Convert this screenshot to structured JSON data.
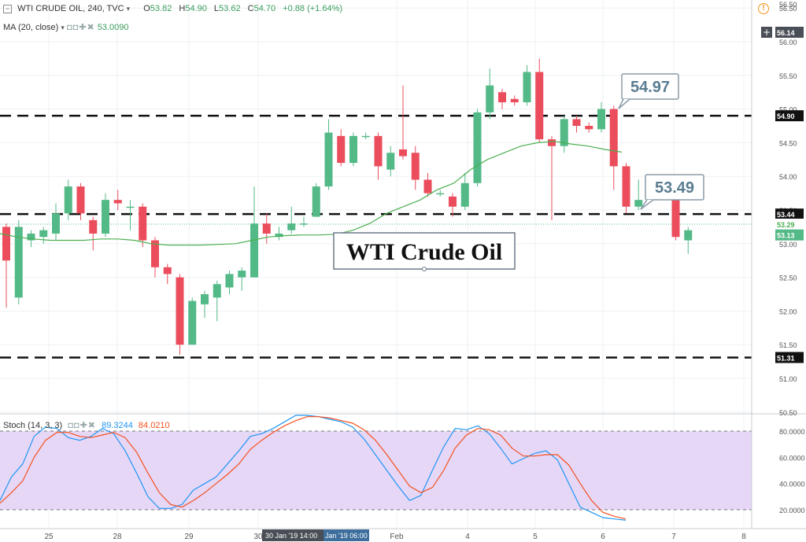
{
  "header": {
    "symbol": "WTI CRUDE OIL, 240, TVC",
    "open_label": "O",
    "open": "53.82",
    "high_label": "H",
    "high": "54.90",
    "low_label": "L",
    "low": "53.62",
    "close_label": "C",
    "close": "54.70",
    "change": "+0.88 (+1.64%)"
  },
  "ma_indicator": {
    "label": "MA (20, close)",
    "value": "53.0090"
  },
  "stoch_indicator": {
    "label": "Stoch (14, 3, 3)",
    "k_value": "89.3244",
    "d_value": "84.0210"
  },
  "annotations": {
    "title_box": "WTI Crude Oil",
    "callout_high": "54.97",
    "callout_low": "53.49"
  },
  "price_tags": {
    "top_scale": "56.50",
    "crosshair": "56.14",
    "resistance": "54.90",
    "pivot": "53.44",
    "ma_value": "53.29",
    "last_price": "53.13",
    "support": "51.31"
  },
  "time_tags": {
    "date": "30 Jan '19",
    "time1": "14:00",
    "date2": "Jan '19",
    "time2": "06:00"
  },
  "colors": {
    "up": "#53b987",
    "down": "#eb4d5c",
    "ma": "#4caf50",
    "stoch_k": "#2196f3",
    "stoch_d": "#f4511e",
    "stoch_band": "#e6d7f7"
  },
  "chart_data": [
    {
      "type": "candlestick",
      "timeframe": "240",
      "x_tick_labels": [
        "25",
        "28",
        "29",
        "30",
        "Feb",
        "4",
        "5",
        "6",
        "7",
        "8"
      ],
      "y_tick_labels": [
        "50.50",
        "51.00",
        "51.50",
        "52.00",
        "52.50",
        "53.00",
        "53.50",
        "54.00",
        "54.50",
        "55.00",
        "55.50",
        "56.00",
        "56.50"
      ],
      "ylim": [
        50.5,
        56.55
      ],
      "candles": [
        [
          53.25,
          52.75,
          53.3,
          52.05
        ],
        [
          52.2,
          53.25,
          53.35,
          52.1
        ],
        [
          53.05,
          53.15,
          53.2,
          52.95
        ],
        [
          53.1,
          53.2,
          53.25,
          53.0
        ],
        [
          53.15,
          53.45,
          53.6,
          53.05
        ],
        [
          53.45,
          53.85,
          53.95,
          53.35
        ],
        [
          53.85,
          53.45,
          53.9,
          53.35
        ],
        [
          53.35,
          53.15,
          53.4,
          52.9
        ],
        [
          53.15,
          53.65,
          53.75,
          53.1
        ],
        [
          53.65,
          53.6,
          53.8,
          53.5
        ],
        [
          53.55,
          53.55,
          53.65,
          53.2
        ],
        [
          53.55,
          53.05,
          53.6,
          52.95
        ],
        [
          53.05,
          52.65,
          53.1,
          52.5
        ],
        [
          52.65,
          52.55,
          52.7,
          52.4
        ],
        [
          52.5,
          51.5,
          52.55,
          51.35
        ],
        [
          51.5,
          52.15,
          52.2,
          51.5
        ],
        [
          52.1,
          52.25,
          52.3,
          51.9
        ],
        [
          52.2,
          52.4,
          52.45,
          51.85
        ],
        [
          52.35,
          52.55,
          52.6,
          52.25
        ],
        [
          52.5,
          52.6,
          52.65,
          52.3
        ],
        [
          52.5,
          53.3,
          53.85,
          52.5
        ],
        [
          53.3,
          53.15,
          53.45,
          53.0
        ],
        [
          53.1,
          53.15,
          53.25,
          53.05
        ],
        [
          53.2,
          53.3,
          53.55,
          53.15
        ],
        [
          53.3,
          53.3,
          53.4,
          53.25
        ],
        [
          53.4,
          53.85,
          53.9,
          53.4
        ],
        [
          53.85,
          54.65,
          54.85,
          53.8
        ],
        [
          54.6,
          54.2,
          54.7,
          54.15
        ],
        [
          54.2,
          54.6,
          54.65,
          54.15
        ],
        [
          54.6,
          54.6,
          54.65,
          54.55
        ],
        [
          54.6,
          54.15,
          54.65,
          53.95
        ],
        [
          54.1,
          54.35,
          54.45,
          54.0
        ],
        [
          54.4,
          54.3,
          55.35,
          54.25
        ],
        [
          54.35,
          53.95,
          54.45,
          53.8
        ],
        [
          53.95,
          53.75,
          54.05,
          53.7
        ],
        [
          53.75,
          53.75,
          53.8,
          53.7
        ],
        [
          53.7,
          53.55,
          53.75,
          53.4
        ],
        [
          53.55,
          53.9,
          54.05,
          53.5
        ],
        [
          53.9,
          54.95,
          55.0,
          53.85
        ],
        [
          54.95,
          55.35,
          55.6,
          54.85
        ],
        [
          55.25,
          55.1,
          55.3,
          55.0
        ],
        [
          55.15,
          55.1,
          55.2,
          55.05
        ],
        [
          55.1,
          55.55,
          55.65,
          55.05
        ],
        [
          55.55,
          54.55,
          55.75,
          54.5
        ],
        [
          54.55,
          54.45,
          54.6,
          53.35
        ],
        [
          54.45,
          54.85,
          54.9,
          54.35
        ],
        [
          54.85,
          54.75,
          54.9,
          54.65
        ],
        [
          54.75,
          54.7,
          54.8,
          54.65
        ],
        [
          54.7,
          55.0,
          55.1,
          54.65
        ],
        [
          55.0,
          54.15,
          55.05,
          53.8
        ],
        [
          54.15,
          53.55,
          54.2,
          53.45
        ],
        [
          53.55,
          53.65,
          53.95,
          53.5
        ],
        [
          53.75,
          53.75,
          53.8,
          53.65
        ],
        [
          53.75,
          53.7,
          53.75,
          53.65
        ],
        [
          53.7,
          53.1,
          53.75,
          53.05
        ],
        [
          53.05,
          53.2,
          53.25,
          52.85
        ]
      ],
      "ma20": [
        53.15,
        53.1,
        53.07,
        53.05,
        53.05,
        53.05,
        53.07,
        53.07,
        53.05,
        53.0,
        52.98,
        52.98,
        52.98,
        52.99,
        53.0,
        53.05,
        53.1,
        53.12,
        53.13,
        53.13,
        53.14,
        53.2,
        53.3,
        53.45,
        53.55,
        53.65,
        53.8,
        53.9,
        54.1,
        54.25,
        54.35,
        54.45,
        54.5,
        54.52,
        54.48,
        54.45,
        54.4,
        54.36
      ],
      "ma20_start_index": 0,
      "horizontal_levels": [
        54.9,
        53.44,
        51.31
      ]
    },
    {
      "type": "line",
      "name": "Stoch (14, 3, 3)",
      "ylim": [
        0,
        100
      ],
      "y_tick_labels": [
        "20.0000",
        "40.0000",
        "60.0000",
        "80.0000"
      ],
      "bands": [
        20,
        80
      ],
      "series": [
        {
          "name": "%K",
          "values": [
            27,
            45,
            55,
            76,
            83,
            82,
            75,
            73,
            76,
            82,
            78,
            65,
            48,
            30,
            21,
            21,
            24,
            35,
            40,
            45,
            55,
            65,
            76,
            78,
            82,
            87,
            92,
            92,
            91,
            89,
            87,
            83,
            74,
            62,
            50,
            38,
            27,
            31,
            50,
            68,
            82,
            81,
            84,
            78,
            67,
            55,
            59,
            63,
            65,
            58,
            40,
            22,
            18,
            14,
            13,
            12
          ]
        },
        {
          "name": "%D",
          "values": [
            25,
            33,
            42,
            60,
            73,
            79,
            79,
            76,
            75,
            77,
            79,
            75,
            64,
            48,
            33,
            24,
            22,
            27,
            33,
            40,
            47,
            55,
            66,
            73,
            79,
            84,
            88,
            91,
            91,
            90,
            88,
            86,
            81,
            73,
            62,
            50,
            38,
            33,
            37,
            50,
            67,
            77,
            82,
            81,
            77,
            67,
            61,
            61,
            62,
            62,
            54,
            40,
            27,
            18,
            15,
            13
          ]
        }
      ]
    }
  ]
}
